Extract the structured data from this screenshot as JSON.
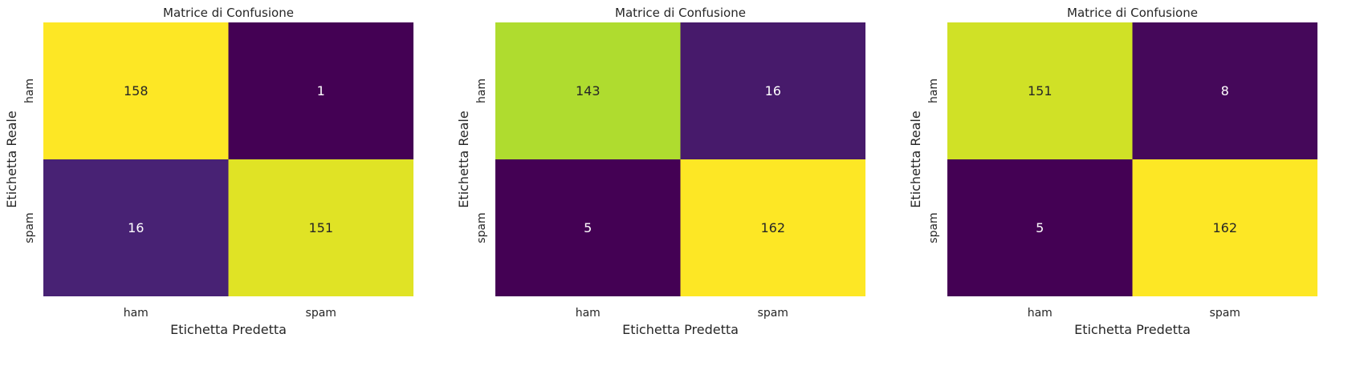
{
  "chart_data": [
    {
      "type": "heatmap",
      "title": "Matrice di Confusione",
      "xlabel": "Etichetta Predetta",
      "ylabel": "Etichetta Reale",
      "x_categories": [
        "ham",
        "spam"
      ],
      "y_categories": [
        "ham",
        "spam"
      ],
      "values": [
        [
          158,
          1
        ],
        [
          16,
          151
        ]
      ],
      "colormap": "viridis",
      "colorbar": false
    },
    {
      "type": "heatmap",
      "title": "Matrice di Confusione",
      "xlabel": "Etichetta Predetta",
      "ylabel": "Etichetta Reale",
      "x_categories": [
        "ham",
        "spam"
      ],
      "y_categories": [
        "ham",
        "spam"
      ],
      "values": [
        [
          143,
          16
        ],
        [
          5,
          162
        ]
      ],
      "colormap": "viridis",
      "colorbar": false
    },
    {
      "type": "heatmap",
      "title": "Matrice di Confusione",
      "xlabel": "Etichetta Predetta",
      "ylabel": "Etichetta Reale",
      "x_categories": [
        "ham",
        "spam"
      ],
      "y_categories": [
        "ham",
        "spam"
      ],
      "values": [
        [
          151,
          8
        ],
        [
          5,
          162
        ]
      ],
      "colormap": "viridis",
      "colorbar": false
    }
  ]
}
